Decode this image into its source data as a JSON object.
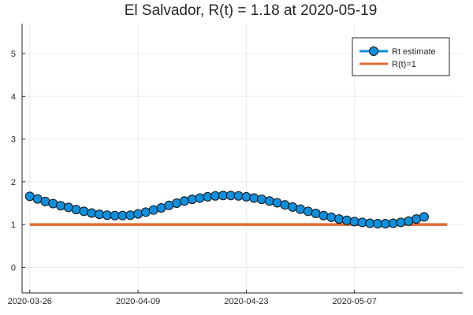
{
  "chart_data": {
    "type": "line",
    "title": "El Salvador, R(t) = 1.18 at 2020-05-19",
    "xlabel": "",
    "ylabel": "",
    "x_start": "2020-03-26",
    "x_end": "2020-05-19",
    "xlim": [
      "2020-03-25",
      "2020-05-21"
    ],
    "ylim": [
      -0.6,
      5.7
    ],
    "x_ticks": [
      "2020-03-26",
      "2020-04-09",
      "2020-04-23",
      "2020-05-07"
    ],
    "y_ticks": [
      0,
      1,
      2,
      3,
      4,
      5
    ],
    "grid": true,
    "legend_position": "top-right",
    "series": [
      {
        "name": "Rt estimate",
        "color": "#0f8fdc",
        "marker": "circle",
        "values": [
          1.66,
          1.6,
          1.54,
          1.49,
          1.44,
          1.4,
          1.35,
          1.31,
          1.27,
          1.24,
          1.22,
          1.21,
          1.21,
          1.22,
          1.25,
          1.29,
          1.34,
          1.39,
          1.45,
          1.5,
          1.55,
          1.59,
          1.62,
          1.65,
          1.67,
          1.68,
          1.68,
          1.67,
          1.65,
          1.62,
          1.59,
          1.55,
          1.51,
          1.46,
          1.41,
          1.36,
          1.31,
          1.26,
          1.21,
          1.17,
          1.13,
          1.1,
          1.07,
          1.05,
          1.03,
          1.02,
          1.02,
          1.03,
          1.05,
          1.08,
          1.13,
          1.18
        ]
      },
      {
        "name": "R(t)=1",
        "color": "#e06a33",
        "marker": "none",
        "values": [
          1,
          1
        ]
      }
    ]
  }
}
